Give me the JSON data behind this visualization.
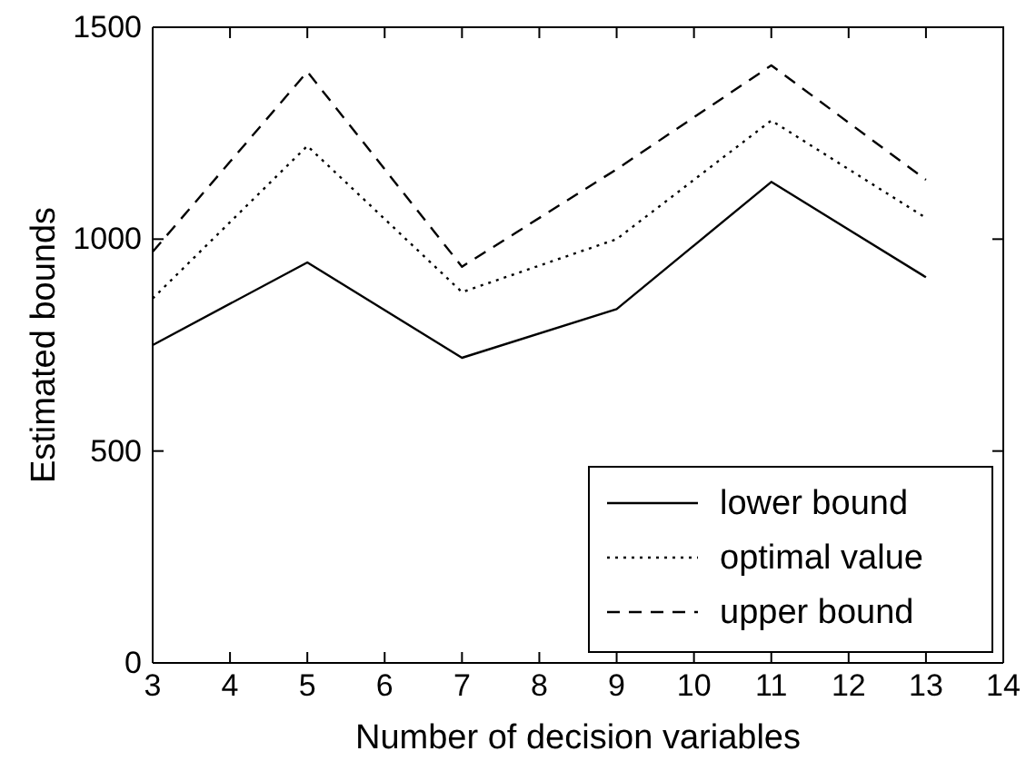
{
  "chart_data": {
    "type": "line",
    "xlabel": "Number of decision variables",
    "ylabel": "Estimated bounds",
    "x": [
      3,
      5,
      7,
      9,
      11,
      13
    ],
    "series": [
      {
        "name": "lower bound",
        "color": "#000000",
        "line_style": "solid",
        "values": [
          750,
          945,
          720,
          835,
          1135,
          910
        ]
      },
      {
        "name": "optimal value",
        "color": "#000000",
        "line_style": "dotted",
        "values": [
          860,
          1220,
          875,
          1000,
          1280,
          1050
        ]
      },
      {
        "name": "upper bound",
        "color": "#000000",
        "line_style": "dashed",
        "values": [
          970,
          1395,
          935,
          1165,
          1410,
          1140
        ]
      }
    ],
    "xlim": [
      3,
      14
    ],
    "xticks": [
      3,
      4,
      5,
      6,
      7,
      8,
      9,
      10,
      11,
      12,
      13,
      14
    ],
    "ylim": [
      0,
      1500
    ],
    "yticks": [
      0,
      500,
      1000,
      1500
    ],
    "grid": false,
    "legend": "bottom right",
    "marker": "none"
  }
}
